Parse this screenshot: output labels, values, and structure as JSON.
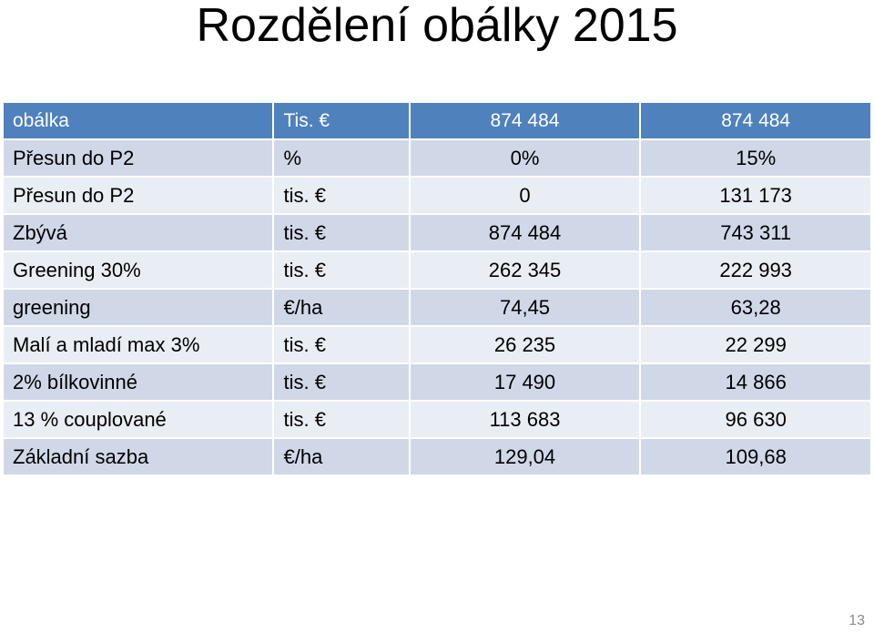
{
  "title": "Rozdělení obálky 2015",
  "table": {
    "header": [
      "obálka",
      "Tis. €",
      "874 484",
      "874 484"
    ],
    "rows": [
      [
        "Přesun do P2",
        "%",
        "0%",
        "15%"
      ],
      [
        "Přesun do P2",
        "tis. €",
        "0",
        "131 173"
      ],
      [
        "Zbývá",
        "tis. €",
        "874 484",
        "743 311"
      ],
      [
        "Greening 30%",
        "tis. €",
        "262 345",
        "222 993"
      ],
      [
        "greening",
        "€/ha",
        "74,45",
        "63,28"
      ],
      [
        "Malí a mladí max 3%",
        "tis. €",
        "26 235",
        "22 299"
      ],
      [
        "2% bílkovinné",
        "tis. €",
        "17 490",
        "14 866"
      ],
      [
        "13 % couplované",
        "tis. €",
        "113 683",
        "96 630"
      ],
      [
        "Základní sazba",
        "€/ha",
        "129,04",
        "109,68"
      ]
    ]
  },
  "page_number": "13",
  "colors": {
    "header_bg": "#4f81bd",
    "row_odd_bg": "#d0d8e8",
    "row_even_bg": "#e9edf4"
  }
}
